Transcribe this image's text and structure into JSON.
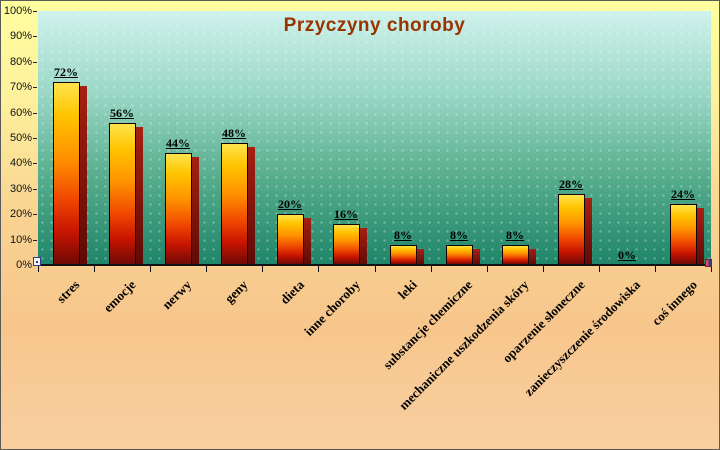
{
  "chart_data": {
    "type": "bar",
    "title": "Przyczyny choroby",
    "categories": [
      "stres",
      "emocje",
      "nerwy",
      "geny",
      "dieta",
      "inne choroby",
      "leki",
      "substancje chemiczne",
      "mechaniczne uszkodzenia skóry",
      "oparzenie słoneczne",
      "zanieczyszczenie środowiska",
      "coś innego"
    ],
    "values": [
      72,
      56,
      44,
      48,
      20,
      16,
      8,
      8,
      8,
      28,
      0,
      24
    ],
    "value_labels": [
      "72%",
      "56%",
      "44%",
      "48%",
      "20%",
      "16%",
      "8%",
      "8%",
      "8%",
      "28%",
      "0%",
      "24%"
    ],
    "xlabel": "",
    "ylabel": "",
    "ylim": [
      0,
      100
    ],
    "ytick_step": 10,
    "ytick_labels": [
      "0%",
      "10%",
      "20%",
      "30%",
      "40%",
      "50%",
      "60%",
      "70%",
      "80%",
      "90%",
      "100%"
    ],
    "grid": false,
    "legend": "none",
    "colors": {
      "title": "#993300",
      "axis": "#111111",
      "value_label": "#000000",
      "category_label": "#000000",
      "bar_gradient": [
        "#FFE44D",
        "#FFC400",
        "#FF9000",
        "#F04800",
        "#C81400",
        "#700A06"
      ],
      "bar_shadow_gradient": [
        "#A62012",
        "#5E0A06"
      ],
      "plot_bg": [
        "#CFF2EC",
        "#9BD8C6",
        "#55AC8C",
        "#1E8468"
      ],
      "chart_bg": [
        "#FFFF9E",
        "#FEF09C",
        "#F9D392",
        "#F7C68C",
        "#F9CFA0"
      ]
    }
  }
}
